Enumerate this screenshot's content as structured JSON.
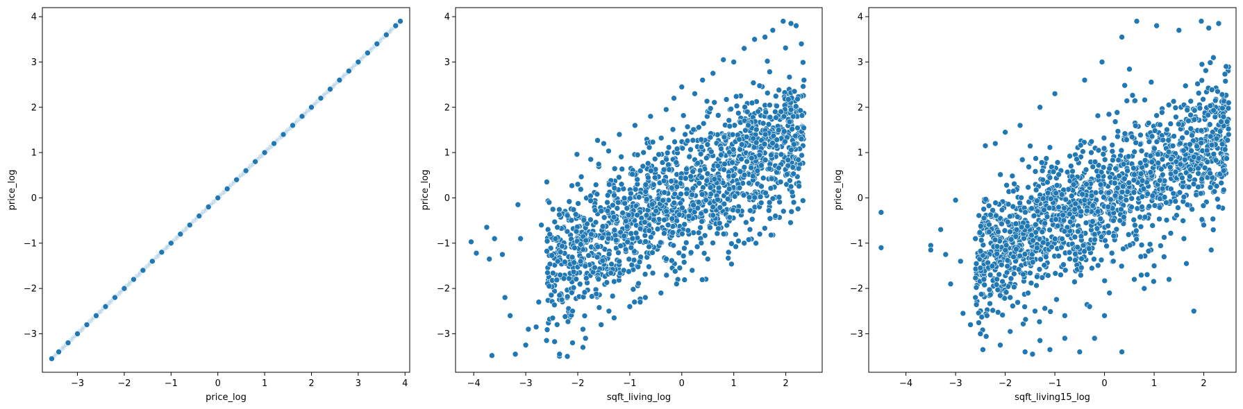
{
  "chart_data": [
    {
      "type": "scatter",
      "xlabel": "price_log",
      "ylabel": "price_log",
      "xlim": [
        -3.75,
        4.1
      ],
      "ylim": [
        -3.85,
        4.2
      ],
      "xticks": [
        -3,
        -2,
        -1,
        0,
        1,
        2,
        3,
        4
      ],
      "yticks": [
        -3,
        -2,
        -1,
        0,
        1,
        2,
        3,
        4
      ],
      "marker_color": "#1f77b4",
      "points": [
        [
          -3.55,
          -3.55
        ],
        [
          -3.4,
          -3.4
        ],
        [
          -3.2,
          -3.2
        ],
        [
          -3.0,
          -3.0
        ],
        [
          -2.8,
          -2.8
        ],
        [
          -2.6,
          -2.6
        ],
        [
          -2.4,
          -2.4
        ],
        [
          -2.2,
          -2.2
        ],
        [
          -2.0,
          -2.0
        ],
        [
          -1.8,
          -1.8
        ],
        [
          -1.6,
          -1.6
        ],
        [
          -1.4,
          -1.4
        ],
        [
          -1.2,
          -1.2
        ],
        [
          -1.0,
          -1.0
        ],
        [
          -0.8,
          -0.8
        ],
        [
          -0.6,
          -0.6
        ],
        [
          -0.4,
          -0.4
        ],
        [
          -0.2,
          -0.2
        ],
        [
          0.0,
          0.0
        ],
        [
          0.2,
          0.2
        ],
        [
          0.4,
          0.4
        ],
        [
          0.6,
          0.6
        ],
        [
          0.8,
          0.8
        ],
        [
          1.0,
          1.0
        ],
        [
          1.2,
          1.2
        ],
        [
          1.4,
          1.4
        ],
        [
          1.6,
          1.6
        ],
        [
          1.8,
          1.8
        ],
        [
          2.0,
          2.0
        ],
        [
          2.2,
          2.2
        ],
        [
          2.4,
          2.4
        ],
        [
          2.6,
          2.6
        ],
        [
          2.8,
          2.8
        ],
        [
          3.0,
          3.0
        ],
        [
          3.2,
          3.2
        ],
        [
          3.4,
          3.4
        ],
        [
          3.6,
          3.6
        ],
        [
          3.8,
          3.8
        ],
        [
          3.9,
          3.9
        ]
      ]
    },
    {
      "type": "scatter",
      "xlabel": "sqft_living_log",
      "ylabel": "price_log",
      "xlim": [
        -4.35,
        2.7
      ],
      "ylim": [
        -3.85,
        4.2
      ],
      "xticks": [
        -4,
        -3,
        -2,
        -1,
        0,
        1,
        2
      ],
      "yticks": [
        -3,
        -2,
        -1,
        0,
        1,
        2,
        3,
        4
      ],
      "marker_color": "#1f77b4",
      "points": [
        [
          -4.05,
          -0.97
        ],
        [
          -3.95,
          -1.22
        ],
        [
          -3.75,
          -0.65
        ],
        [
          -3.7,
          -1.35
        ],
        [
          -3.6,
          -0.9
        ],
        [
          -3.65,
          -3.48
        ],
        [
          -3.45,
          -1.25
        ],
        [
          -3.4,
          -2.2
        ],
        [
          -3.3,
          -2.6
        ],
        [
          -3.15,
          -0.15
        ],
        [
          -3.1,
          -0.9
        ],
        [
          -3.2,
          -3.45
        ],
        [
          -3.0,
          -3.25
        ],
        [
          -2.95,
          -2.9
        ],
        [
          -2.8,
          -2.85
        ],
        [
          -2.7,
          -0.6
        ],
        [
          -2.75,
          -2.3
        ],
        [
          -2.6,
          -3.15
        ],
        [
          -2.55,
          -0.1
        ],
        [
          -2.35,
          -3.45
        ],
        [
          -2.2,
          -3.5
        ],
        [
          -2.1,
          -3.2
        ],
        [
          -2.0,
          0.3
        ],
        [
          -1.9,
          -3.3
        ],
        [
          -1.85,
          -3.1
        ],
        [
          -1.75,
          0.85
        ],
        [
          -1.5,
          1.2
        ],
        [
          -1.55,
          -2.8
        ],
        [
          -1.3,
          -2.65
        ],
        [
          -1.2,
          1.4
        ],
        [
          -1.0,
          -2.4
        ],
        [
          -0.9,
          1.6
        ],
        [
          -0.7,
          -2.2
        ],
        [
          -0.6,
          1.8
        ],
        [
          -0.3,
          1.95
        ],
        [
          -0.15,
          2.2
        ],
        [
          0.0,
          2.45
        ],
        [
          0.25,
          2.3
        ],
        [
          0.4,
          2.6
        ],
        [
          0.6,
          2.75
        ],
        [
          0.8,
          3.05
        ],
        [
          1.0,
          3.0
        ],
        [
          1.2,
          3.3
        ],
        [
          1.4,
          3.5
        ],
        [
          1.6,
          3.55
        ],
        [
          1.75,
          3.7
        ],
        [
          1.95,
          3.9
        ],
        [
          2.1,
          3.85
        ],
        [
          2.2,
          3.8
        ],
        [
          2.3,
          3.4
        ],
        [
          2.35,
          2.6
        ],
        [
          2.3,
          1.3
        ],
        [
          2.1,
          0.25
        ],
        [
          1.8,
          -0.4
        ],
        [
          1.5,
          -0.8
        ],
        [
          1.2,
          -1.0
        ],
        [
          0.9,
          -1.2
        ],
        [
          0.5,
          -1.35
        ],
        [
          0.2,
          -1.6
        ],
        [
          -0.1,
          -1.9
        ],
        [
          -0.4,
          -2.1
        ],
        [
          -0.8,
          -2.3
        ],
        [
          -1.4,
          -2.5
        ],
        [
          -1.9,
          -2.9
        ],
        [
          -2.1,
          -2.5
        ]
      ]
    },
    {
      "type": "scatter",
      "xlabel": "sqft_living15_log",
      "ylabel": "price_log",
      "xlim": [
        -4.75,
        2.65
      ],
      "ylim": [
        -3.85,
        4.2
      ],
      "xticks": [
        -4,
        -3,
        -2,
        -1,
        0,
        1,
        2
      ],
      "yticks": [
        -3,
        -2,
        -1,
        0,
        1,
        2,
        3,
        4
      ],
      "marker_color": "#1f77b4",
      "points": [
        [
          -4.5,
          -0.32
        ],
        [
          -4.5,
          -1.1
        ],
        [
          -3.5,
          -1.05
        ],
        [
          -3.5,
          -1.15
        ],
        [
          -3.3,
          -0.7
        ],
        [
          -3.2,
          -1.25
        ],
        [
          -3.1,
          -1.9
        ],
        [
          -3.0,
          -0.05
        ],
        [
          -2.9,
          -1.4
        ],
        [
          -2.85,
          -2.55
        ],
        [
          -2.7,
          -2.8
        ],
        [
          -2.6,
          -2.2
        ],
        [
          -2.5,
          -3.0
        ],
        [
          -2.45,
          -3.35
        ],
        [
          -2.4,
          1.15
        ],
        [
          -2.2,
          1.2
        ],
        [
          -2.1,
          -3.25
        ],
        [
          -2.0,
          1.45
        ],
        [
          -1.9,
          -2.95
        ],
        [
          -1.7,
          1.6
        ],
        [
          -1.6,
          -3.4
        ],
        [
          -1.45,
          -3.45
        ],
        [
          -1.3,
          2.0
        ],
        [
          -1.1,
          -3.35
        ],
        [
          -1.0,
          2.3
        ],
        [
          -0.8,
          -3.1
        ],
        [
          -0.5,
          -3.4
        ],
        [
          -0.4,
          2.6
        ],
        [
          -0.2,
          -3.1
        ],
        [
          -0.05,
          3.0
        ],
        [
          0.0,
          -2.6
        ],
        [
          0.35,
          -3.4
        ],
        [
          0.35,
          3.55
        ],
        [
          0.65,
          3.9
        ],
        [
          0.8,
          -2.0
        ],
        [
          1.0,
          -1.5
        ],
        [
          1.05,
          3.8
        ],
        [
          1.3,
          -1.8
        ],
        [
          1.5,
          3.7
        ],
        [
          1.8,
          -2.5
        ],
        [
          1.65,
          -1.45
        ],
        [
          1.95,
          3.9
        ],
        [
          2.1,
          3.75
        ],
        [
          2.15,
          -1.15
        ],
        [
          2.3,
          3.85
        ],
        [
          2.45,
          2.9
        ],
        [
          2.5,
          2.1
        ],
        [
          2.5,
          1.4
        ],
        [
          2.4,
          0.6
        ],
        [
          2.3,
          -0.2
        ],
        [
          2.0,
          -0.6
        ],
        [
          1.6,
          -0.9
        ],
        [
          1.2,
          -1.3
        ],
        [
          0.6,
          -1.8
        ],
        [
          0.1,
          -2.1
        ],
        [
          -0.3,
          -2.4
        ],
        [
          -0.8,
          -2.6
        ],
        [
          -1.4,
          -2.5
        ],
        [
          -1.9,
          -2.2
        ],
        [
          -2.3,
          -1.7
        ],
        [
          -2.6,
          -0.9
        ]
      ]
    }
  ]
}
